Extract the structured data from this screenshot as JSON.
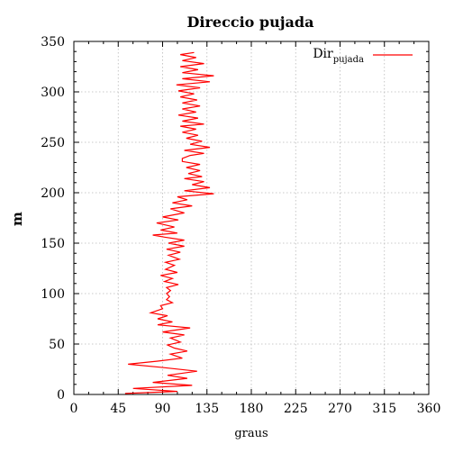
{
  "chart_data": {
    "type": "line",
    "title": "Direccio pujada",
    "xlabel": "graus",
    "ylabel": "m",
    "xlim": [
      0,
      360
    ],
    "ylim": [
      0,
      350
    ],
    "xticks": [
      0,
      45,
      90,
      135,
      180,
      225,
      270,
      315,
      360
    ],
    "yticks": [
      0,
      50,
      100,
      150,
      200,
      250,
      300,
      350
    ],
    "grid": true,
    "legend_position": "top-right",
    "series": [
      {
        "name": "Dir",
        "name_subscript": "pujada",
        "color": "#ff0000",
        "points": [
          [
            52,
            1
          ],
          [
            105,
            3
          ],
          [
            60,
            6
          ],
          [
            120,
            9
          ],
          [
            80,
            12
          ],
          [
            115,
            16
          ],
          [
            95,
            19
          ],
          [
            125,
            23
          ],
          [
            88,
            27
          ],
          [
            55,
            30
          ],
          [
            85,
            33
          ],
          [
            110,
            36
          ],
          [
            98,
            40
          ],
          [
            115,
            43
          ],
          [
            102,
            46
          ],
          [
            95,
            49
          ],
          [
            108,
            52
          ],
          [
            98,
            56
          ],
          [
            112,
            59
          ],
          [
            90,
            62
          ],
          [
            118,
            66
          ],
          [
            85,
            69
          ],
          [
            100,
            72
          ],
          [
            85,
            75
          ],
          [
            95,
            78
          ],
          [
            78,
            81
          ],
          [
            90,
            85
          ],
          [
            88,
            88
          ],
          [
            100,
            91
          ],
          [
            94,
            94
          ],
          [
            97,
            97
          ],
          [
            94,
            100
          ],
          [
            98,
            103
          ],
          [
            94,
            106
          ],
          [
            106,
            109
          ],
          [
            92,
            112
          ],
          [
            100,
            115
          ],
          [
            88,
            118
          ],
          [
            105,
            121
          ],
          [
            93,
            124
          ],
          [
            102,
            128
          ],
          [
            93,
            131
          ],
          [
            107,
            134
          ],
          [
            96,
            138
          ],
          [
            108,
            141
          ],
          [
            94,
            144
          ],
          [
            112,
            147
          ],
          [
            96,
            150
          ],
          [
            112,
            153
          ],
          [
            92,
            156
          ],
          [
            80,
            158
          ],
          [
            105,
            160
          ],
          [
            88,
            163
          ],
          [
            102,
            166
          ],
          [
            84,
            170
          ],
          [
            106,
            173
          ],
          [
            90,
            176
          ],
          [
            112,
            180
          ],
          [
            98,
            184
          ],
          [
            120,
            187
          ],
          [
            100,
            190
          ],
          [
            115,
            193
          ],
          [
            105,
            196
          ],
          [
            142,
            199
          ],
          [
            112,
            202
          ],
          [
            138,
            205
          ],
          [
            120,
            208
          ],
          [
            132,
            211
          ],
          [
            112,
            214
          ],
          [
            130,
            216
          ],
          [
            116,
            219
          ],
          [
            128,
            222
          ],
          [
            114,
            225
          ],
          [
            128,
            228
          ],
          [
            110,
            231
          ],
          [
            110,
            234
          ],
          [
            118,
            237
          ],
          [
            132,
            239
          ],
          [
            112,
            242
          ],
          [
            138,
            245
          ],
          [
            118,
            248
          ],
          [
            130,
            251
          ],
          [
            114,
            254
          ],
          [
            126,
            257
          ],
          [
            110,
            260
          ],
          [
            124,
            263
          ],
          [
            108,
            266
          ],
          [
            132,
            268
          ],
          [
            110,
            271
          ],
          [
            126,
            274
          ],
          [
            106,
            277
          ],
          [
            124,
            280
          ],
          [
            110,
            283
          ],
          [
            128,
            286
          ],
          [
            110,
            289
          ],
          [
            125,
            292
          ],
          [
            108,
            295
          ],
          [
            122,
            298
          ],
          [
            106,
            301
          ],
          [
            128,
            304
          ],
          [
            104,
            307
          ],
          [
            138,
            310
          ],
          [
            110,
            313
          ],
          [
            142,
            316
          ],
          [
            110,
            319
          ],
          [
            126,
            322
          ],
          [
            108,
            325
          ],
          [
            132,
            328
          ],
          [
            110,
            331
          ],
          [
            124,
            334
          ],
          [
            108,
            337
          ],
          [
            122,
            339
          ]
        ]
      }
    ]
  }
}
